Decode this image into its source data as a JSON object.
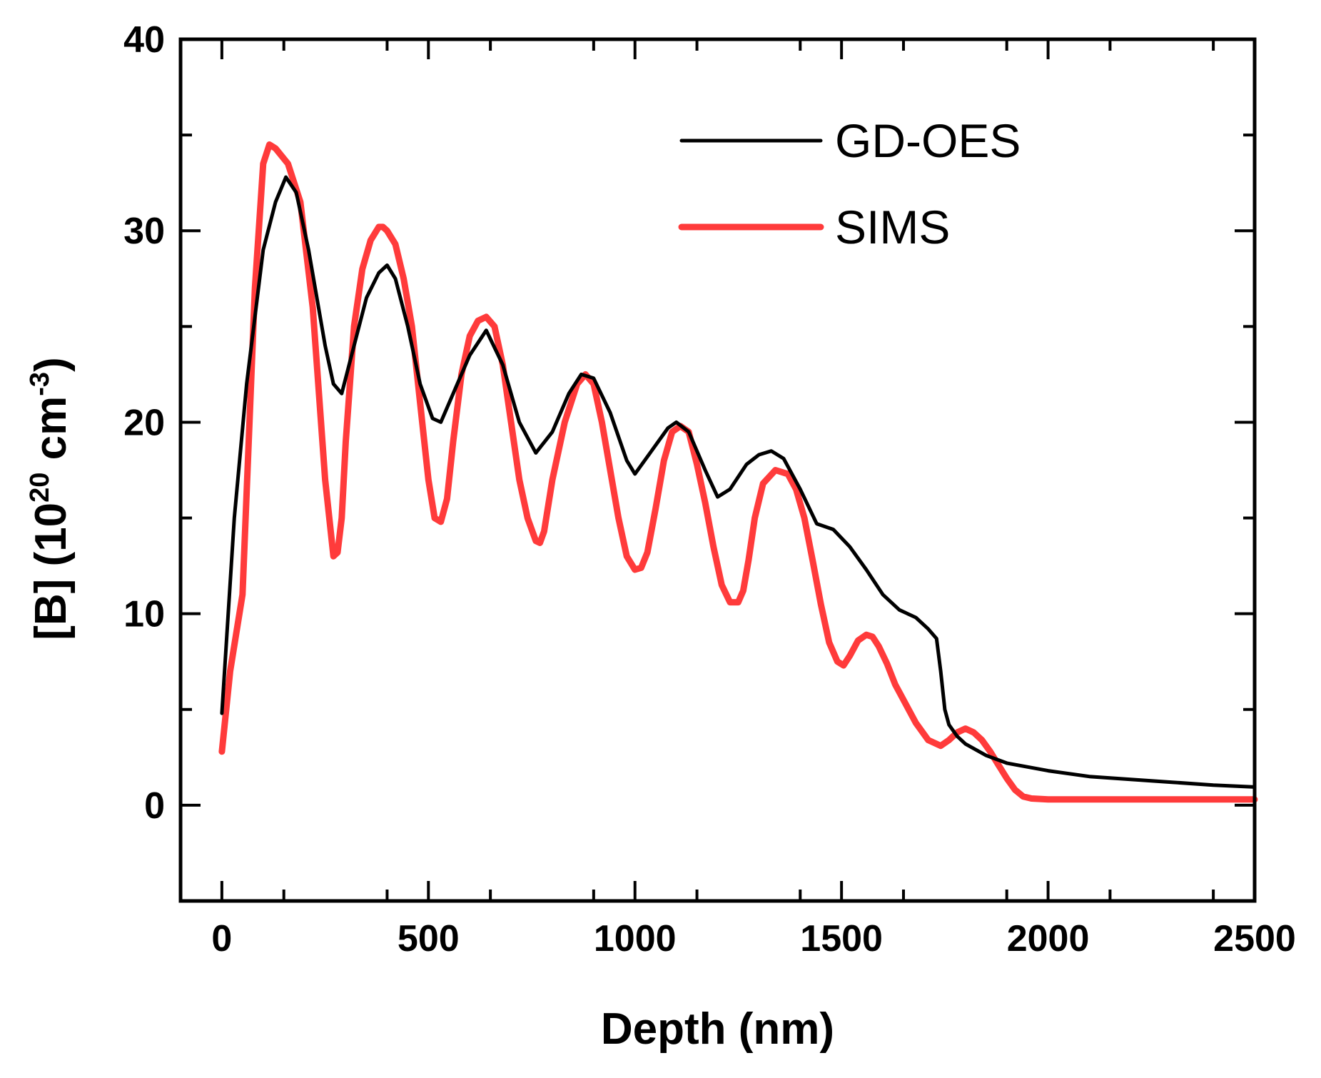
{
  "chart_data": {
    "type": "line",
    "title": "",
    "xlabel": "Depth (nm)",
    "ylabel": {
      "prefix": "[B] (10",
      "exp1": "20",
      "middle": " cm",
      "exp2": "-3",
      "suffix": ")"
    },
    "xlim": [
      -100,
      2500
    ],
    "ylim": [
      -5,
      40
    ],
    "xticks": [
      0,
      500,
      1000,
      1500,
      2000,
      2500
    ],
    "yticks": [
      0,
      10,
      20,
      30,
      40
    ],
    "xtick_labels": [
      "0",
      "500",
      "1000",
      "1500",
      "2000",
      "2500"
    ],
    "ytick_labels": [
      "0",
      "10",
      "20",
      "30",
      "40"
    ],
    "grid": false,
    "legend_position": "top-right",
    "series": [
      {
        "name": "GD-OES",
        "color": "#000000",
        "x": [
          0,
          30,
          60,
          100,
          130,
          155,
          180,
          210,
          250,
          270,
          290,
          320,
          350,
          380,
          400,
          420,
          450,
          480,
          510,
          530,
          560,
          600,
          640,
          680,
          720,
          760,
          800,
          840,
          870,
          900,
          940,
          980,
          1000,
          1040,
          1080,
          1100,
          1130,
          1170,
          1200,
          1230,
          1270,
          1300,
          1330,
          1360,
          1400,
          1440,
          1480,
          1520,
          1560,
          1600,
          1640,
          1680,
          1710,
          1730,
          1740,
          1750,
          1760,
          1780,
          1800,
          1850,
          1900,
          2000,
          2100,
          2200,
          2300,
          2400,
          2500
        ],
        "y": [
          4.8,
          15,
          22,
          29,
          31.5,
          32.8,
          32,
          29,
          24,
          22,
          21.5,
          24,
          26.5,
          27.8,
          28.2,
          27.5,
          25,
          22,
          20.2,
          20,
          21.5,
          23.5,
          24.8,
          23,
          20,
          18.4,
          19.5,
          21.5,
          22.5,
          22.3,
          20.5,
          18,
          17.3,
          18.5,
          19.7,
          20,
          19.5,
          17.5,
          16.1,
          16.5,
          17.8,
          18.3,
          18.5,
          18.1,
          16.5,
          14.7,
          14.4,
          13.5,
          12.3,
          11,
          10.2,
          9.8,
          9.2,
          8.7,
          7,
          5,
          4.2,
          3.6,
          3.2,
          2.6,
          2.2,
          1.8,
          1.5,
          1.35,
          1.2,
          1.05,
          0.95
        ]
      },
      {
        "name": "SIMS",
        "color": "#ff3b3b",
        "x": [
          0,
          20,
          50,
          80,
          100,
          115,
          130,
          160,
          190,
          220,
          250,
          270,
          280,
          290,
          300,
          320,
          340,
          360,
          380,
          390,
          400,
          420,
          440,
          460,
          480,
          500,
          515,
          530,
          545,
          560,
          580,
          600,
          620,
          640,
          660,
          680,
          700,
          720,
          740,
          760,
          770,
          780,
          800,
          830,
          860,
          880,
          900,
          920,
          940,
          960,
          980,
          1000,
          1015,
          1030,
          1050,
          1070,
          1090,
          1110,
          1130,
          1150,
          1170,
          1190,
          1210,
          1230,
          1250,
          1262,
          1275,
          1290,
          1310,
          1340,
          1370,
          1390,
          1410,
          1430,
          1450,
          1470,
          1490,
          1505,
          1520,
          1540,
          1560,
          1575,
          1590,
          1610,
          1630,
          1650,
          1680,
          1710,
          1740,
          1760,
          1780,
          1800,
          1820,
          1840,
          1860,
          1880,
          1900,
          1920,
          1940,
          1960,
          2000,
          2100,
          2200,
          2300,
          2400,
          2500
        ],
        "y": [
          2.8,
          7,
          11,
          27,
          33.5,
          34.5,
          34.3,
          33.5,
          31.5,
          26,
          17,
          13,
          13.2,
          15,
          19,
          25,
          28,
          29.5,
          30.2,
          30.2,
          30,
          29.3,
          27.5,
          25,
          21,
          17,
          15,
          14.8,
          16,
          19,
          22.5,
          24.5,
          25.3,
          25.5,
          25,
          23,
          20,
          17,
          15,
          13.8,
          13.7,
          14.3,
          17,
          20,
          22,
          22.5,
          22,
          20,
          17.5,
          15,
          13,
          12.3,
          12.4,
          13.2,
          15.5,
          18,
          19.5,
          19.8,
          19.5,
          17.8,
          15.8,
          13.5,
          11.5,
          10.6,
          10.6,
          11.2,
          12.8,
          15,
          16.8,
          17.5,
          17.3,
          16.5,
          15,
          12.8,
          10.5,
          8.5,
          7.5,
          7.3,
          7.8,
          8.6,
          8.9,
          8.8,
          8.3,
          7.4,
          6.3,
          5.5,
          4.3,
          3.4,
          3.1,
          3.4,
          3.8,
          4,
          3.8,
          3.4,
          2.8,
          2.1,
          1.4,
          0.8,
          0.45,
          0.35,
          0.3,
          0.3,
          0.3,
          0.3,
          0.3,
          0.3
        ]
      }
    ]
  }
}
